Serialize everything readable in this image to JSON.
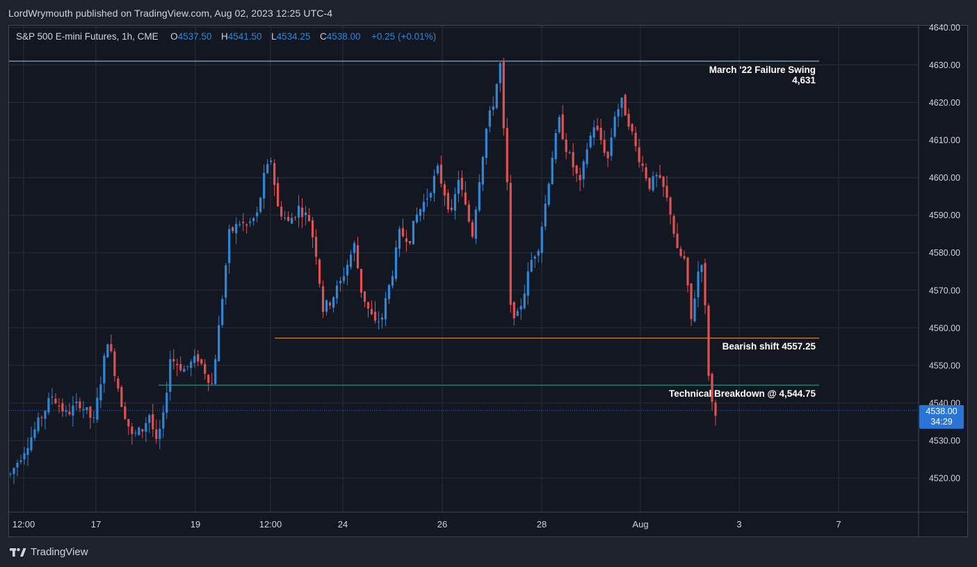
{
  "header": {
    "publisher_line": "LordWrymouth published on TradingView.com, Aug 02, 2023 12:25 UTC-4"
  },
  "legend": {
    "symbol": "S&P 500 E-mini Futures, 1h, CME",
    "open_label": "O",
    "open_value": "4537.50",
    "high_label": "H",
    "high_value": "4541.50",
    "low_label": "L",
    "low_value": "4534.25",
    "close_label": "C",
    "close_value": "4538.00",
    "change": "+0.25 (+0.01%)"
  },
  "price_badge": {
    "price": "4538.00",
    "countdown": "34:29"
  },
  "brand": {
    "name": "TradingView",
    "logo_icon": "tradingview-logo-icon"
  },
  "colors": {
    "background": "#131722",
    "up_candle": "#2f87d6",
    "down_candle": "#e0524f",
    "grid": "#2a2e39",
    "failure_swing_line": "#9ad7e0",
    "bearish_shift_line": "#f0a04b",
    "breakdown_line": "#26a69a",
    "current_price_line": "#2a74d6"
  },
  "chart_data": {
    "type": "candlestick",
    "title": "",
    "xlabel": "",
    "ylabel": "",
    "ylim": [
      4513,
      4641
    ],
    "y_ticks": [
      "4640.00",
      "4630.00",
      "4620.00",
      "4610.00",
      "4600.00",
      "4590.00",
      "4580.00",
      "4570.00",
      "4560.00",
      "4550.00",
      "4540.00",
      "4530.00",
      "4520.00"
    ],
    "x_ticks": [
      "12:00",
      "17",
      "19",
      "12:00",
      "24",
      "26",
      "28",
      "Aug",
      "3",
      "7"
    ],
    "grid": true,
    "current_price": 4538.0,
    "annotations": [
      {
        "name": "failure-swing",
        "line1": "March '22 Failure Swing",
        "line2": "4,631",
        "price": 4631.0
      },
      {
        "name": "bearish-shift",
        "text": "Bearish shift 4557.25",
        "price": 4557.25
      },
      {
        "name": "technical-breakdown",
        "text": "Technical Breakdown @ 4,544.75",
        "price": 4544.75
      }
    ],
    "price_path": [
      [
        0,
        4521
      ],
      [
        6,
        4531
      ],
      [
        12,
        4542
      ],
      [
        16,
        4537
      ],
      [
        20,
        4540
      ],
      [
        24,
        4535
      ],
      [
        28,
        4557
      ],
      [
        32,
        4540
      ],
      [
        35,
        4531
      ],
      [
        38,
        4533
      ],
      [
        40,
        4537
      ],
      [
        42,
        4529
      ],
      [
        44,
        4536
      ],
      [
        46,
        4552
      ],
      [
        50,
        4549
      ],
      [
        54,
        4552
      ],
      [
        58,
        4545
      ],
      [
        60,
        4560
      ],
      [
        63,
        4585
      ],
      [
        66,
        4588
      ],
      [
        68,
        4587
      ],
      [
        71,
        4590
      ],
      [
        73,
        4600
      ],
      [
        75,
        4605
      ],
      [
        77,
        4592
      ],
      [
        80,
        4588
      ],
      [
        83,
        4592
      ],
      [
        86,
        4589
      ],
      [
        88,
        4580
      ],
      [
        90,
        4565
      ],
      [
        92,
        4567
      ],
      [
        95,
        4572
      ],
      [
        97,
        4577
      ],
      [
        99,
        4582
      ],
      [
        101,
        4570
      ],
      [
        103,
        4565
      ],
      [
        105,
        4561
      ],
      [
        107,
        4563
      ],
      [
        110,
        4575
      ],
      [
        112,
        4585
      ],
      [
        115,
        4584
      ],
      [
        117,
        4590
      ],
      [
        120,
        4595
      ],
      [
        123,
        4602
      ],
      [
        125,
        4596
      ],
      [
        127,
        4590
      ],
      [
        129,
        4600
      ],
      [
        131,
        4592
      ],
      [
        133,
        4585
      ],
      [
        135,
        4600
      ],
      [
        137,
        4613
      ],
      [
        139,
        4620
      ],
      [
        141,
        4630
      ],
      [
        142,
        4612
      ],
      [
        143,
        4598
      ],
      [
        144,
        4565
      ],
      [
        146,
        4563
      ],
      [
        148,
        4570
      ],
      [
        150,
        4578
      ],
      [
        152,
        4582
      ],
      [
        154,
        4593
      ],
      [
        156,
        4606
      ],
      [
        158,
        4615
      ],
      [
        160,
        4608
      ],
      [
        162,
        4603
      ],
      [
        164,
        4598
      ],
      [
        166,
        4608
      ],
      [
        168,
        4614
      ],
      [
        170,
        4610
      ],
      [
        172,
        4605
      ],
      [
        174,
        4617
      ],
      [
        176,
        4620
      ],
      [
        178,
        4615
      ],
      [
        180,
        4608
      ],
      [
        182,
        4603
      ],
      [
        184,
        4598
      ],
      [
        186,
        4600
      ],
      [
        188,
        4597
      ],
      [
        190,
        4591
      ],
      [
        192,
        4580
      ],
      [
        194,
        4578
      ],
      [
        196,
        4562
      ],
      [
        198,
        4575
      ],
      [
        199,
        4578
      ],
      [
        200,
        4565
      ],
      [
        201,
        4548
      ],
      [
        202,
        4540
      ],
      [
        203,
        4538
      ]
    ]
  }
}
